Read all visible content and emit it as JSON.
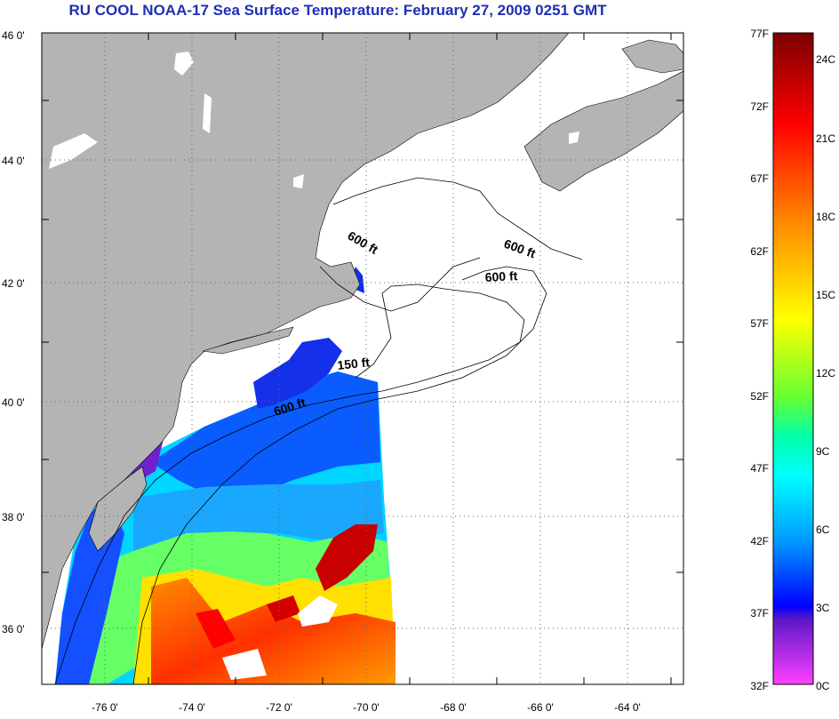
{
  "title": "RU COOL  NOAA-17  Sea Surface Temperature:  February 27, 2009 0251 GMT",
  "map": {
    "lat_labels": [
      "46 0'",
      "44 0'",
      "42 0'",
      "40 0'",
      "38 0'",
      "36 0'"
    ],
    "lon_labels": [
      "-76 0'",
      "-74 0'",
      "-72 0'",
      "-70 0'",
      "-68 0'",
      "-66 0'",
      "-64 0'"
    ],
    "contour_labels": [
      {
        "text": "600 ft",
        "id": "contour-600-north"
      },
      {
        "text": "600 ft",
        "id": "contour-600-east"
      },
      {
        "text": "600 ft",
        "id": "contour-600-georges"
      },
      {
        "text": "150 ft",
        "id": "contour-150"
      },
      {
        "text": "600 ft",
        "id": "contour-600-south"
      }
    ],
    "colors": {
      "land": "#b4b4b4",
      "ocean_nodata": "#ffffff"
    }
  },
  "colorbar": {
    "f_labels": [
      "77F",
      "72F",
      "67F",
      "62F",
      "57F",
      "52F",
      "47F",
      "42F",
      "37F",
      "32F"
    ],
    "c_labels": [
      "24C",
      "21C",
      "18C",
      "15C",
      "12C",
      "9C",
      "6C",
      "3C",
      "0C"
    ],
    "range_f": [
      32,
      77
    ],
    "range_c": [
      0,
      25
    ]
  }
}
